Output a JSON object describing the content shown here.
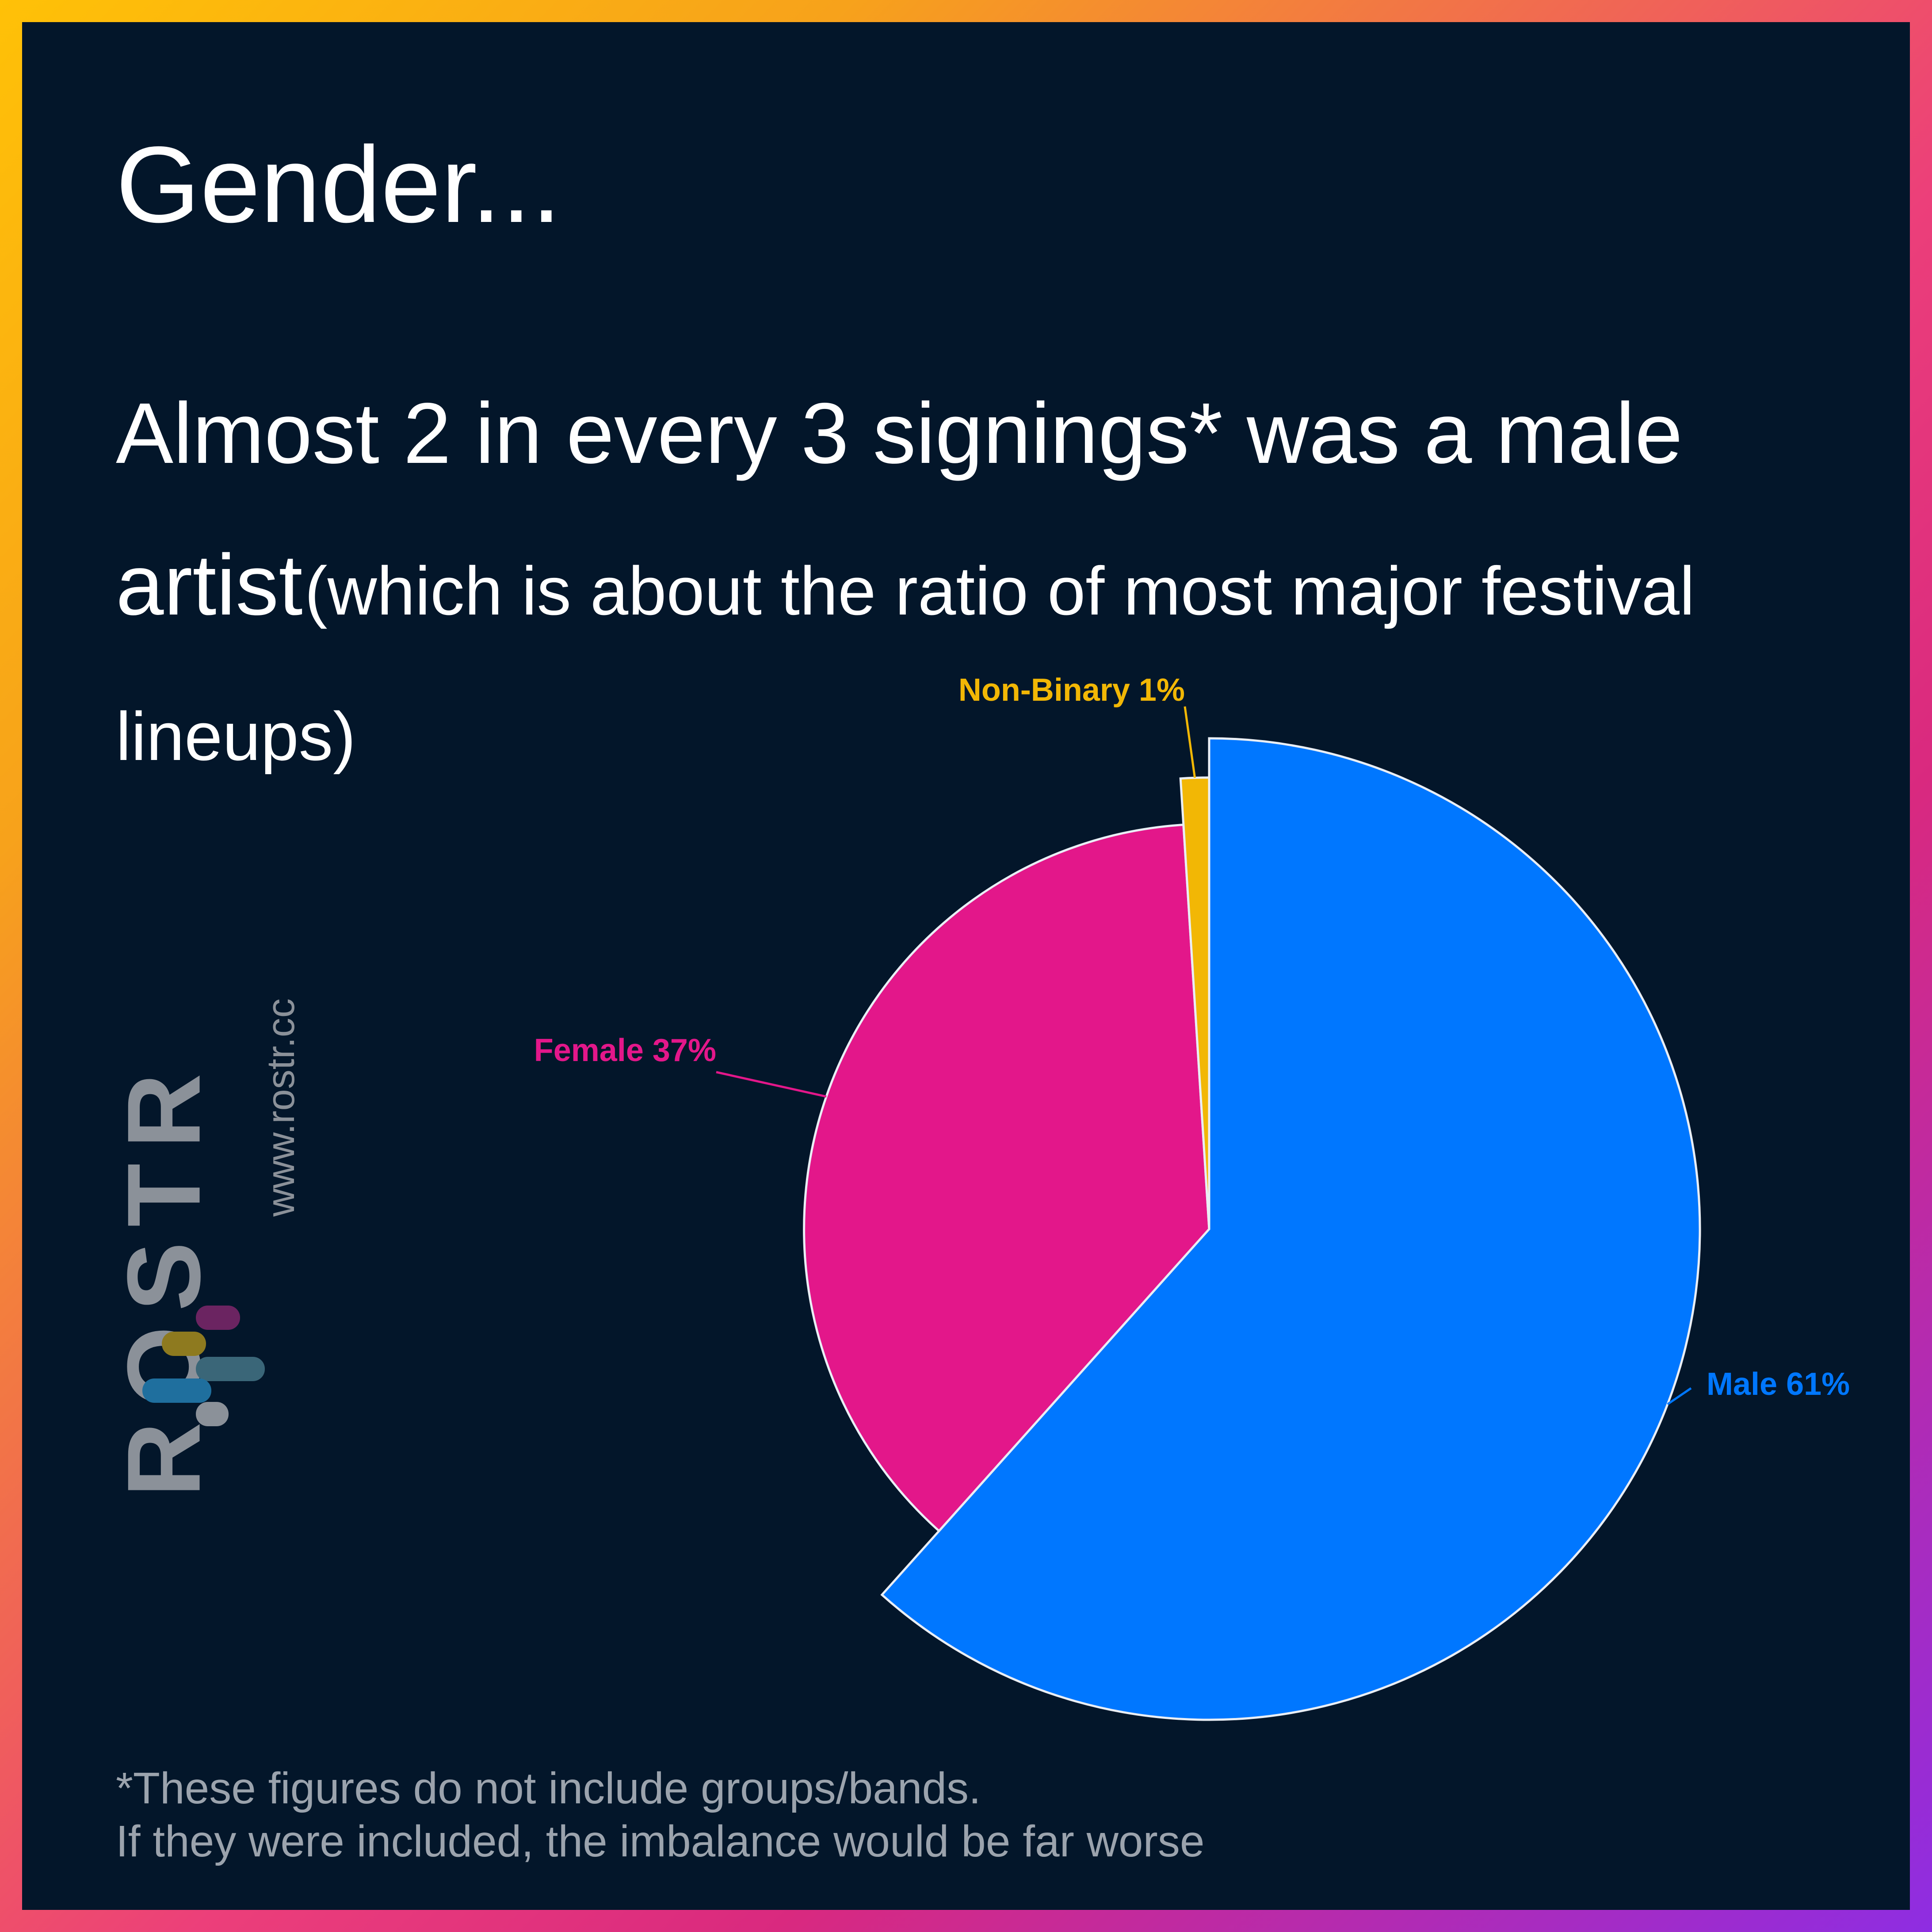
{
  "title": "Gender...",
  "subtitle_main": "Almost 2 in every 3 signings* was a male artist",
  "subtitle_note": "(which is about the ratio of most major festival lineups)",
  "footnote_line1": "*These figures do not include groups/bands.",
  "footnote_line2": "If they were included, the imbalance would be far worse",
  "logo": {
    "word": "ROSTR",
    "url": "www.rostr.cc"
  },
  "chart_data": {
    "type": "pie",
    "order": "clockwise from top",
    "slices": [
      {
        "name": "Male",
        "value": 61,
        "label": "Male 61%",
        "color": "#0077ff"
      },
      {
        "name": "Female",
        "value": 37,
        "label": "Female 37%",
        "color": "#e3178a"
      },
      {
        "name": "Non-Binary",
        "value": 1,
        "label": "Non-Binary 1%",
        "color": "#f2b705"
      }
    ],
    "style": "variable-radius pie (slice radius scales with share)",
    "labels_outside_with_leader_lines": true
  }
}
